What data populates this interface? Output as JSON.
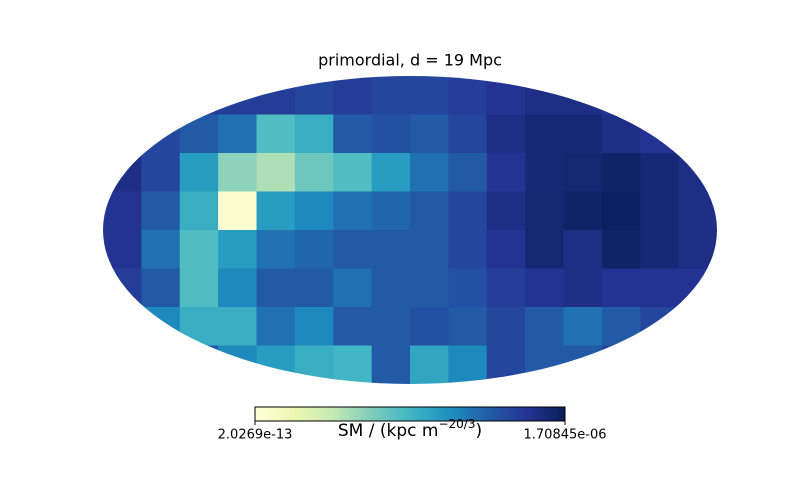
{
  "chart_data": {
    "type": "mollweide",
    "title": "primordial, d = 19 Mpc",
    "colorbar_label": {
      "text": "SM / (kpc m",
      "superscript": "−20/3",
      "close": ")"
    },
    "clim": [
      2.0269e-13,
      1.70845e-06
    ],
    "colorbar_ticks": [
      2.0269e-13,
      {
        "value": 1.70845e-06,
        "label": "1.70845e-06"
      }
    ],
    "colormap": [
      "#ffffd9",
      "#edf8b1",
      "#c7e9b4",
      "#7fcdbb",
      "#41b6c4",
      "#1d91c0",
      "#225ea8",
      "#253494",
      "#081d58"
    ],
    "map": [
      [
        1.5e-06,
        1.5e-06,
        1.45e-06,
        1.45e-06,
        1.45e-06,
        1.4e-06,
        1.45e-06,
        1.4e-06,
        1.4e-06,
        1.45e-06,
        1.5e-06,
        1.55e-06,
        1.55e-06,
        1.5e-06,
        1.5e-06,
        1.5e-06
      ],
      [
        1.5e-06,
        1.4e-06,
        1.3e-06,
        1.2e-06,
        8e-07,
        9e-07,
        1.3e-06,
        1.35e-06,
        1.3e-06,
        1.4e-06,
        1.55e-06,
        1.6e-06,
        1.6e-06,
        1.55e-06,
        1.5e-06,
        1.5e-06
      ],
      [
        1.55e-06,
        1.4e-06,
        1e-06,
        6e-07,
        5e-07,
        7e-07,
        8e-07,
        1e-06,
        1.2e-06,
        1.3e-06,
        1.5e-06,
        1.6e-06,
        1.62e-06,
        1.65e-06,
        1.6e-06,
        1.55e-06
      ],
      [
        1.5e-06,
        1.3e-06,
        9e-07,
        5e-08,
        1e-06,
        1.1e-06,
        1.2e-06,
        1.25e-06,
        1.3e-06,
        1.4e-06,
        1.55e-06,
        1.62e-06,
        1.65e-06,
        1.68e-06,
        1.6e-06,
        1.55e-06
      ],
      [
        1.5e-06,
        1.2e-06,
        8e-07,
        1e-06,
        1.2e-06,
        1.25e-06,
        1.3e-06,
        1.3e-06,
        1.3e-06,
        1.4e-06,
        1.5e-06,
        1.62e-06,
        1.55e-06,
        1.65e-06,
        1.6e-06,
        1.55e-06
      ],
      [
        1.45e-06,
        1.3e-06,
        8e-07,
        1.1e-06,
        1.3e-06,
        1.3e-06,
        1.2e-06,
        1.3e-06,
        1.3e-06,
        1.35e-06,
        1.45e-06,
        1.5e-06,
        1.55e-06,
        1.5e-06,
        1.5e-06,
        1.5e-06
      ],
      [
        1.4e-06,
        1.1e-06,
        9e-07,
        9e-07,
        1.2e-06,
        1.1e-06,
        1.3e-06,
        1.3e-06,
        1.35e-06,
        1.3e-06,
        1.4e-06,
        1.3e-06,
        1.2e-06,
        1.3e-06,
        1.4e-06,
        1.4e-06
      ],
      [
        1.45e-06,
        1.4e-06,
        1.3e-06,
        1.1e-06,
        1e-06,
        9e-07,
        8.5e-07,
        1.3e-06,
        9.5e-07,
        1.1e-06,
        1.4e-06,
        1.3e-06,
        1.3e-06,
        1.4e-06,
        1.4e-06,
        1.4e-06
      ]
    ]
  }
}
